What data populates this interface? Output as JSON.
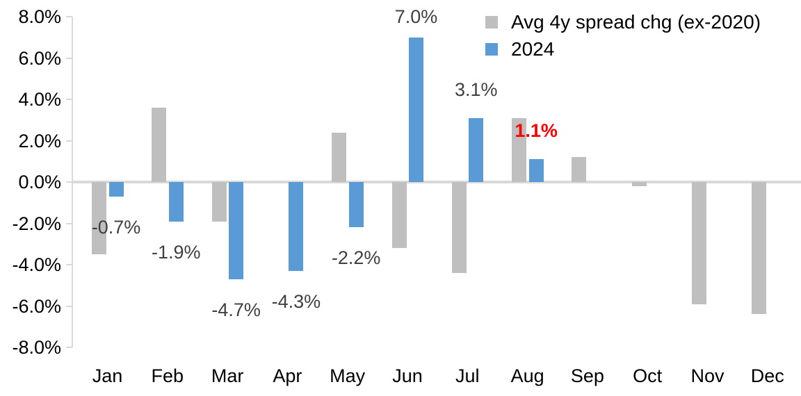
{
  "chart_data": {
    "type": "bar",
    "title": "",
    "xlabel": "",
    "ylabel": "",
    "categories": [
      "Jan",
      "Feb",
      "Mar",
      "Apr",
      "May",
      "Jun",
      "Jul",
      "Aug",
      "Sep",
      "Oct",
      "Nov",
      "Dec"
    ],
    "series": [
      {
        "name": "Avg 4y spread chg (ex-2020)",
        "color": "#bfbfbf",
        "values": [
          -3.5,
          3.6,
          -1.9,
          0.0,
          2.4,
          -3.2,
          -4.4,
          3.1,
          1.2,
          -0.2,
          -5.9,
          -6.4
        ]
      },
      {
        "name": "2024",
        "color": "#5b9bd5",
        "values": [
          -0.7,
          -1.9,
          -4.7,
          -4.3,
          -2.2,
          7.0,
          3.1,
          1.1,
          null,
          null,
          null,
          null
        ]
      }
    ],
    "data_labels": [
      {
        "month_index": 0,
        "text": "-0.7%",
        "color": "#404040",
        "bold": false
      },
      {
        "month_index": 1,
        "text": "-1.9%",
        "color": "#404040",
        "bold": false
      },
      {
        "month_index": 2,
        "text": "-4.7%",
        "color": "#404040",
        "bold": false
      },
      {
        "month_index": 3,
        "text": "-4.3%",
        "color": "#404040",
        "bold": false
      },
      {
        "month_index": 4,
        "text": "-2.2%",
        "color": "#404040",
        "bold": false
      },
      {
        "month_index": 5,
        "text": "7.0%",
        "color": "#404040",
        "bold": false
      },
      {
        "month_index": 6,
        "text": "3.1%",
        "color": "#404040",
        "bold": false
      },
      {
        "month_index": 7,
        "text": "1.1%",
        "color": "#ff0000",
        "bold": true
      }
    ],
    "y_axis": {
      "min": -8,
      "max": 8,
      "step": 2,
      "tick_labels": [
        "8.0%",
        "6.0%",
        "4.0%",
        "2.0%",
        "0.0%",
        "-2.0%",
        "-4.0%",
        "-6.0%",
        "-8.0%"
      ]
    },
    "legend": {
      "position": "top-right",
      "entries": [
        {
          "label": "Avg 4y spread chg (ex-2020)",
          "color": "#bfbfbf"
        },
        {
          "label": "2024",
          "color": "#5b9bd5"
        }
      ]
    },
    "grid": false,
    "colors": {
      "axis": "#d9d9d9",
      "data_label": "#404040",
      "highlight_label": "#ff0000"
    }
  }
}
